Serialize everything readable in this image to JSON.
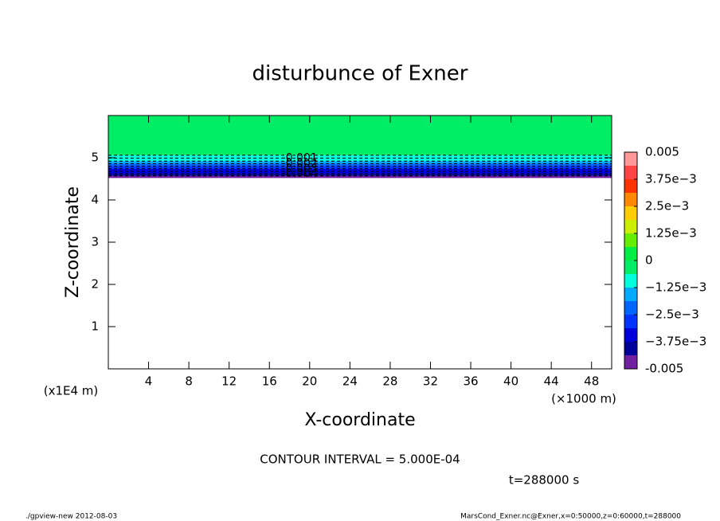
{
  "chart_data": {
    "type": "contour",
    "title": "disturbunce of Exner",
    "xlabel": "X-coordinate",
    "ylabel": "Z-coordinate",
    "xunit": "(×1000 m)",
    "yunit": "(x1E4 m)",
    "xlim": [
      0,
      50
    ],
    "ylim": [
      0,
      6
    ],
    "xticks": [
      4,
      8,
      12,
      16,
      20,
      24,
      28,
      32,
      36,
      40,
      44,
      48
    ],
    "yticks": [
      1,
      2,
      3,
      4,
      5
    ],
    "contour": {
      "levels": [
        -0.0005,
        -0.001,
        -0.0015,
        -0.002,
        -0.0025,
        -0.003,
        -0.0035,
        -0.004,
        -0.0045
      ],
      "z": [
        5.06,
        4.99,
        4.92,
        4.86,
        4.8,
        4.74,
        4.68,
        4.62,
        4.57
      ],
      "value_labels": [
        null,
        "-0.001",
        null,
        "-0.002",
        null,
        "-0.003",
        null,
        "-0.004",
        null
      ],
      "field_zlim": [
        4.52,
        6
      ]
    },
    "colorbar": {
      "lim": [
        -0.005,
        0.005
      ],
      "colors": [
        "#7020a0",
        "#00009a",
        "#0000dd",
        "#0033ff",
        "#0066ff",
        "#00aaff",
        "#00ffdd",
        "#00ee66",
        "#00ee44",
        "#66ee00",
        "#ccee00",
        "#ffcc00",
        "#ff8800",
        "#ff3300",
        "#ff4444",
        "#ff9999"
      ],
      "ticks": [
        -0.005,
        {
          "value": -0.00375,
          "label": "−3.75e−3"
        },
        {
          "value": -0.0025,
          "label": "−2.5e−3"
        },
        {
          "value": -0.00125,
          "label": "−1.25e−3"
        },
        0,
        {
          "value": 0.00125,
          "label": "1.25e−3"
        },
        {
          "value": 0.0025,
          "label": "2.5e−3"
        },
        {
          "value": 0.00375,
          "label": "3.75e−3"
        },
        0.005
      ]
    },
    "note": "CONTOUR INTERVAL = 5.000E-04",
    "time_label": "t=288000 s",
    "footer_left": "./gpview-new   2012-08-03",
    "footer_right": "MarsCond_Exner.nc@Exner,x=0:50000,z=0:60000,t=288000"
  }
}
